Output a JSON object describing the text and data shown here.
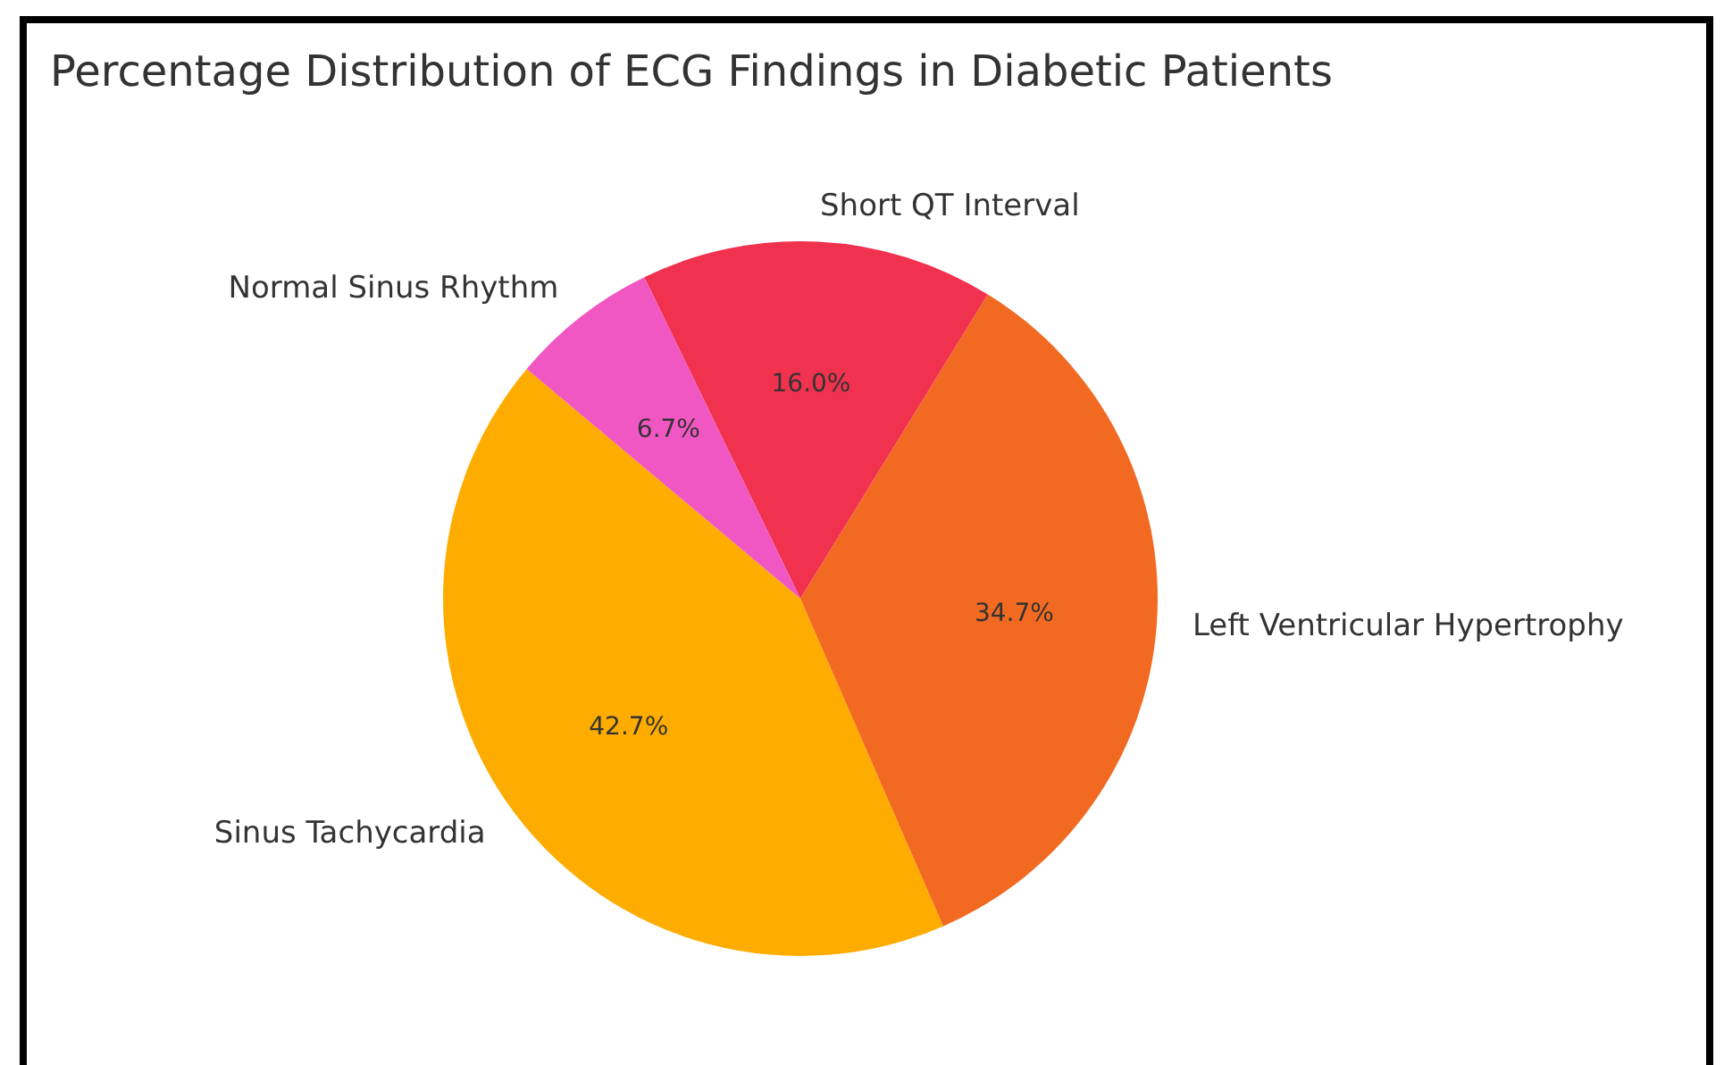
{
  "chart_data": {
    "type": "pie",
    "title": "Percentage Distribution of ECG Findings in Diabetic Patients",
    "categories": [
      "Sinus Tachycardia",
      "Left Ventricular Hypertrophy",
      "Short QT Interval",
      "Normal Sinus Rhythm"
    ],
    "values": [
      42.7,
      34.7,
      16.0,
      6.7
    ],
    "colors": [
      "#ffac00",
      "#f26a21",
      "#f0324f",
      "#f057c2"
    ],
    "value_labels": [
      "42.7%",
      "34.7%",
      "16.0%",
      "6.7%"
    ],
    "legend": false
  }
}
